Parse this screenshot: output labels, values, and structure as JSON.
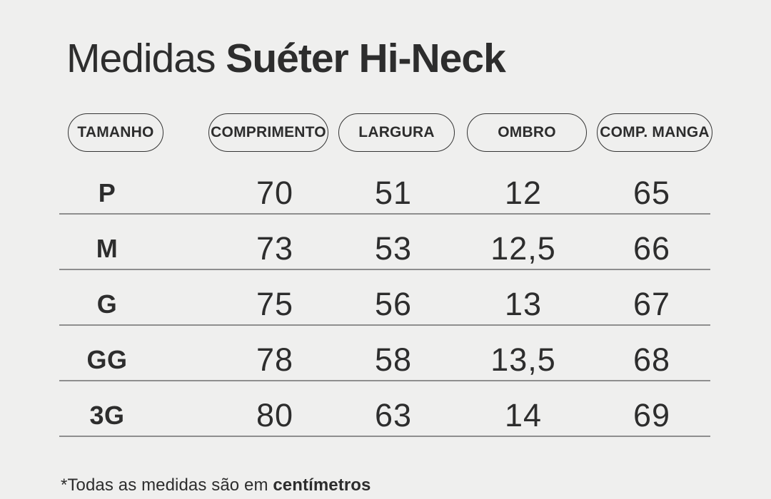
{
  "page": {
    "background_color": "#efefee",
    "text_color": "#2d2d2d",
    "divider_color": "#8e8e8e",
    "pill_border_color": "#343434"
  },
  "title": {
    "regular": "Medidas",
    "bold": "Suéter Hi-Neck"
  },
  "chart_data": {
    "type": "table",
    "title": "Medidas Suéter Hi-Neck",
    "columns": [
      "TAMANHO",
      "COMPRIMENTO",
      "LARGURA",
      "OMBRO",
      "COMP. MANGA"
    ],
    "rows": [
      {
        "size": "P",
        "values": [
          "70",
          "51",
          "12",
          "65"
        ]
      },
      {
        "size": "M",
        "values": [
          "73",
          "53",
          "12,5",
          "66"
        ]
      },
      {
        "size": "G",
        "values": [
          "75",
          "56",
          "13",
          "67"
        ]
      },
      {
        "size": "GG",
        "values": [
          "78",
          "58",
          "13,5",
          "68"
        ]
      },
      {
        "size": "3G",
        "values": [
          "80",
          "63",
          "14",
          "69"
        ]
      }
    ],
    "units": "cm"
  },
  "footnote": {
    "prefix": "*Todas as medidas são em ",
    "bold": "centímetros"
  }
}
